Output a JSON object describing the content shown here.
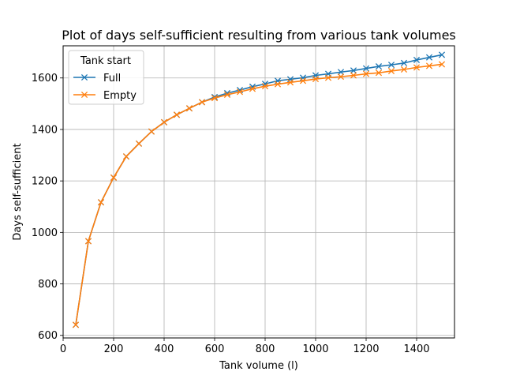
{
  "chart_data": {
    "type": "line",
    "title": "Plot of days self-sufficient resulting from various tank volumes",
    "xlabel": "Tank volume (l)",
    "ylabel": "Days self-sufficient",
    "xlim": [
      0,
      1550
    ],
    "ylim": [
      590,
      1725
    ],
    "xticks": [
      0,
      200,
      400,
      600,
      800,
      1000,
      1200,
      1400
    ],
    "yticks": [
      600,
      800,
      1000,
      1200,
      1400,
      1600
    ],
    "grid": true,
    "legend": {
      "title": "Tank start",
      "placement": "top-left"
    },
    "marker": "x",
    "x": [
      50,
      100,
      150,
      200,
      250,
      300,
      350,
      400,
      450,
      500,
      550,
      600,
      650,
      700,
      750,
      800,
      850,
      900,
      950,
      1000,
      1050,
      1100,
      1150,
      1200,
      1250,
      1300,
      1350,
      1400,
      1450,
      1500
    ],
    "series": [
      {
        "name": "Full",
        "color": "#1f77b4",
        "values": [
          641,
          966,
          1117,
          1213,
          1295,
          1345,
          1392,
          1428,
          1457,
          1482,
          1506,
          1526,
          1541,
          1553,
          1566,
          1577,
          1589,
          1595,
          1601,
          1610,
          1616,
          1623,
          1629,
          1637,
          1645,
          1651,
          1658,
          1670,
          1680,
          1690
        ]
      },
      {
        "name": "Empty",
        "color": "#ff7f0e",
        "values": [
          641,
          966,
          1117,
          1213,
          1295,
          1345,
          1392,
          1428,
          1457,
          1482,
          1506,
          1522,
          1535,
          1546,
          1558,
          1568,
          1576,
          1583,
          1589,
          1596,
          1601,
          1605,
          1610,
          1616,
          1620,
          1627,
          1633,
          1641,
          1647,
          1653
        ]
      }
    ]
  }
}
